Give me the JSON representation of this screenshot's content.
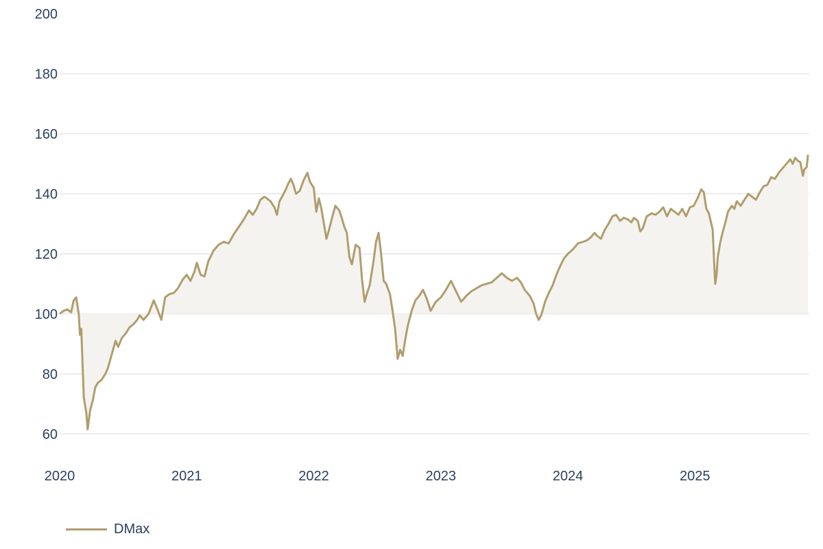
{
  "chart_data": {
    "type": "area",
    "baseline": 100,
    "ylim": [
      50,
      200
    ],
    "yticks": [
      "60",
      "80",
      "100",
      "120",
      "140",
      "160",
      "180",
      "200"
    ],
    "xlim": [
      2020.0,
      2025.9
    ],
    "xticks": [
      "2020",
      "2021",
      "2022",
      "2023",
      "2024",
      "2025"
    ],
    "grid": true,
    "legend": "bottom-left",
    "colors": {
      "line": "#b09d6e",
      "fill": "#f5f3ef",
      "grid": "#e6e6e6",
      "text": "#2a3f5f"
    },
    "series": [
      {
        "name": "DMax",
        "points": [
          [
            2020.0,
            100.0
          ],
          [
            2020.03,
            101.0
          ],
          [
            2020.06,
            101.5
          ],
          [
            2020.09,
            100.5
          ],
          [
            2020.11,
            104.5
          ],
          [
            2020.13,
            105.5
          ],
          [
            2020.15,
            100.0
          ],
          [
            2020.16,
            93.0
          ],
          [
            2020.17,
            95.0
          ],
          [
            2020.19,
            72.0
          ],
          [
            2020.21,
            67.0
          ],
          [
            2020.22,
            61.5
          ],
          [
            2020.24,
            68.0
          ],
          [
            2020.26,
            71.0
          ],
          [
            2020.28,
            75.5
          ],
          [
            2020.3,
            77.0
          ],
          [
            2020.33,
            78.0
          ],
          [
            2020.36,
            80.0
          ],
          [
            2020.38,
            82.0
          ],
          [
            2020.4,
            85.0
          ],
          [
            2020.42,
            88.0
          ],
          [
            2020.44,
            91.0
          ],
          [
            2020.46,
            89.0
          ],
          [
            2020.49,
            92.0
          ],
          [
            2020.52,
            93.5
          ],
          [
            2020.55,
            95.5
          ],
          [
            2020.58,
            96.5
          ],
          [
            2020.61,
            98.0
          ],
          [
            2020.63,
            99.5
          ],
          [
            2020.66,
            98.0
          ],
          [
            2020.7,
            100.0
          ],
          [
            2020.74,
            104.5
          ],
          [
            2020.77,
            101.5
          ],
          [
            2020.8,
            98.0
          ],
          [
            2020.83,
            105.5
          ],
          [
            2020.86,
            106.5
          ],
          [
            2020.9,
            107.0
          ],
          [
            2020.93,
            108.5
          ],
          [
            2020.97,
            111.5
          ],
          [
            2021.0,
            113.0
          ],
          [
            2021.03,
            111.0
          ],
          [
            2021.06,
            114.0
          ],
          [
            2021.08,
            117.0
          ],
          [
            2021.11,
            113.0
          ],
          [
            2021.14,
            112.5
          ],
          [
            2021.17,
            117.5
          ],
          [
            2021.21,
            121.0
          ],
          [
            2021.25,
            123.0
          ],
          [
            2021.29,
            124.0
          ],
          [
            2021.33,
            123.5
          ],
          [
            2021.37,
            126.5
          ],
          [
            2021.41,
            129.0
          ],
          [
            2021.45,
            131.5
          ],
          [
            2021.49,
            134.5
          ],
          [
            2021.52,
            133.0
          ],
          [
            2021.55,
            135.0
          ],
          [
            2021.58,
            138.0
          ],
          [
            2021.61,
            139.0
          ],
          [
            2021.63,
            138.5
          ],
          [
            2021.66,
            137.5
          ],
          [
            2021.69,
            135.5
          ],
          [
            2021.71,
            133.0
          ],
          [
            2021.73,
            137.5
          ],
          [
            2021.75,
            139.0
          ],
          [
            2021.78,
            141.5
          ],
          [
            2021.8,
            143.5
          ],
          [
            2021.82,
            145.0
          ],
          [
            2021.84,
            143.0
          ],
          [
            2021.86,
            140.0
          ],
          [
            2021.89,
            141.0
          ],
          [
            2021.92,
            144.5
          ],
          [
            2021.95,
            147.0
          ],
          [
            2021.97,
            144.0
          ],
          [
            2022.0,
            142.0
          ],
          [
            2022.02,
            134.0
          ],
          [
            2022.04,
            138.5
          ],
          [
            2022.06,
            135.0
          ],
          [
            2022.08,
            130.0
          ],
          [
            2022.1,
            125.0
          ],
          [
            2022.12,
            128.0
          ],
          [
            2022.15,
            133.0
          ],
          [
            2022.17,
            136.0
          ],
          [
            2022.2,
            134.5
          ],
          [
            2022.22,
            132.0
          ],
          [
            2022.24,
            129.0
          ],
          [
            2022.26,
            127.0
          ],
          [
            2022.28,
            119.0
          ],
          [
            2022.3,
            116.5
          ],
          [
            2022.33,
            123.0
          ],
          [
            2022.36,
            122.0
          ],
          [
            2022.38,
            111.5
          ],
          [
            2022.4,
            104.0
          ],
          [
            2022.42,
            107.0
          ],
          [
            2022.44,
            109.5
          ],
          [
            2022.47,
            117.5
          ],
          [
            2022.49,
            124.0
          ],
          [
            2022.51,
            127.0
          ],
          [
            2022.53,
            120.0
          ],
          [
            2022.55,
            111.0
          ],
          [
            2022.57,
            110.0
          ],
          [
            2022.6,
            106.5
          ],
          [
            2022.62,
            101.0
          ],
          [
            2022.64,
            95.0
          ],
          [
            2022.66,
            85.0
          ],
          [
            2022.68,
            88.0
          ],
          [
            2022.7,
            86.0
          ],
          [
            2022.72,
            91.5
          ],
          [
            2022.74,
            96.0
          ],
          [
            2022.77,
            101.0
          ],
          [
            2022.8,
            104.5
          ],
          [
            2022.83,
            106.0
          ],
          [
            2022.86,
            108.0
          ],
          [
            2022.89,
            105.0
          ],
          [
            2022.92,
            101.0
          ],
          [
            2022.96,
            104.0
          ],
          [
            2023.0,
            105.5
          ],
          [
            2023.04,
            108.0
          ],
          [
            2023.08,
            111.0
          ],
          [
            2023.12,
            107.5
          ],
          [
            2023.16,
            104.0
          ],
          [
            2023.2,
            106.0
          ],
          [
            2023.24,
            107.5
          ],
          [
            2023.28,
            108.5
          ],
          [
            2023.32,
            109.5
          ],
          [
            2023.36,
            110.0
          ],
          [
            2023.4,
            110.5
          ],
          [
            2023.44,
            112.0
          ],
          [
            2023.48,
            113.5
          ],
          [
            2023.52,
            112.0
          ],
          [
            2023.56,
            111.0
          ],
          [
            2023.6,
            112.0
          ],
          [
            2023.63,
            110.5
          ],
          [
            2023.66,
            108.0
          ],
          [
            2023.7,
            106.0
          ],
          [
            2023.73,
            103.5
          ],
          [
            2023.75,
            100.0
          ],
          [
            2023.77,
            98.0
          ],
          [
            2023.79,
            99.5
          ],
          [
            2023.82,
            104.0
          ],
          [
            2023.85,
            107.0
          ],
          [
            2023.88,
            109.5
          ],
          [
            2023.91,
            113.0
          ],
          [
            2023.94,
            116.0
          ],
          [
            2023.97,
            118.5
          ],
          [
            2024.0,
            120.0
          ],
          [
            2024.04,
            121.5
          ],
          [
            2024.08,
            123.5
          ],
          [
            2024.12,
            124.0
          ],
          [
            2024.15,
            124.5
          ],
          [
            2024.18,
            125.5
          ],
          [
            2024.21,
            127.0
          ],
          [
            2024.23,
            126.0
          ],
          [
            2024.26,
            125.0
          ],
          [
            2024.29,
            128.0
          ],
          [
            2024.32,
            130.0
          ],
          [
            2024.35,
            132.5
          ],
          [
            2024.38,
            133.0
          ],
          [
            2024.41,
            131.0
          ],
          [
            2024.44,
            132.0
          ],
          [
            2024.47,
            131.5
          ],
          [
            2024.5,
            130.5
          ],
          [
            2024.52,
            132.0
          ],
          [
            2024.55,
            131.0
          ],
          [
            2024.57,
            127.5
          ],
          [
            2024.59,
            128.5
          ],
          [
            2024.62,
            132.5
          ],
          [
            2024.66,
            133.5
          ],
          [
            2024.69,
            133.0
          ],
          [
            2024.72,
            134.0
          ],
          [
            2024.75,
            135.5
          ],
          [
            2024.78,
            132.5
          ],
          [
            2024.81,
            135.0
          ],
          [
            2024.84,
            134.0
          ],
          [
            2024.87,
            133.0
          ],
          [
            2024.9,
            135.0
          ],
          [
            2024.93,
            132.5
          ],
          [
            2024.96,
            135.5
          ],
          [
            2024.99,
            136.0
          ],
          [
            2025.02,
            138.5
          ],
          [
            2025.05,
            141.5
          ],
          [
            2025.07,
            140.5
          ],
          [
            2025.09,
            135.0
          ],
          [
            2025.11,
            133.5
          ],
          [
            2025.14,
            128.0
          ],
          [
            2025.15,
            118.0
          ],
          [
            2025.16,
            110.0
          ],
          [
            2025.17,
            113.0
          ],
          [
            2025.18,
            119.0
          ],
          [
            2025.2,
            124.0
          ],
          [
            2025.22,
            127.5
          ],
          [
            2025.24,
            130.5
          ],
          [
            2025.26,
            134.0
          ],
          [
            2025.29,
            136.0
          ],
          [
            2025.31,
            135.0
          ],
          [
            2025.33,
            137.5
          ],
          [
            2025.36,
            136.0
          ],
          [
            2025.39,
            138.0
          ],
          [
            2025.42,
            140.0
          ],
          [
            2025.45,
            139.0
          ],
          [
            2025.48,
            138.0
          ],
          [
            2025.51,
            140.5
          ],
          [
            2025.54,
            142.5
          ],
          [
            2025.57,
            143.0
          ],
          [
            2025.6,
            145.5
          ],
          [
            2025.63,
            145.0
          ],
          [
            2025.66,
            147.0
          ],
          [
            2025.69,
            148.5
          ],
          [
            2025.72,
            150.0
          ],
          [
            2025.75,
            151.5
          ],
          [
            2025.77,
            150.0
          ],
          [
            2025.79,
            152.0
          ],
          [
            2025.81,
            151.0
          ],
          [
            2025.83,
            150.5
          ],
          [
            2025.85,
            146.0
          ],
          [
            2025.86,
            148.0
          ],
          [
            2025.88,
            149.0
          ],
          [
            2025.89,
            153.0
          ]
        ]
      }
    ]
  }
}
